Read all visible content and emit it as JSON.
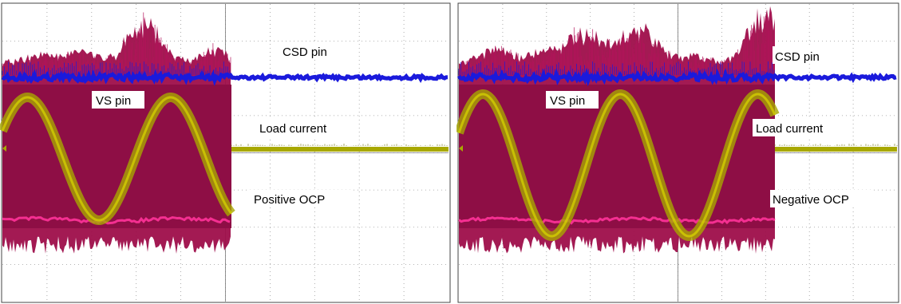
{
  "chart_data": [
    {
      "type": "line",
      "panel": "left",
      "annotations": [
        "CSD pin",
        "VS pin",
        "Load current",
        "Positive OCP"
      ],
      "series": [
        {
          "name": "CSD pin",
          "color": "#1a1adc",
          "kind": "flat trace with noisy bursts"
        },
        {
          "name": "VS pin",
          "color": "#9e0e4a",
          "kind": "switching envelope"
        },
        {
          "name": "Load current",
          "color": "#a8a800",
          "kind": "sine, then zero"
        }
      ],
      "load_current_cycles": 1.6,
      "event": "protection trips at positive current peak",
      "grid": true
    },
    {
      "type": "line",
      "panel": "right",
      "annotations": [
        "CSD pin",
        "VS pin",
        "Load current",
        "Negative OCP"
      ],
      "series": [
        {
          "name": "CSD pin",
          "color": "#1a1adc",
          "kind": "flat trace with noisy bursts"
        },
        {
          "name": "VS pin",
          "color": "#9e0e4a",
          "kind": "switching envelope"
        },
        {
          "name": "Load current",
          "color": "#a8a800",
          "kind": "sine, then zero"
        }
      ],
      "load_current_cycles": 2.3,
      "event": "protection trips at negative current peak",
      "grid": true
    }
  ]
}
